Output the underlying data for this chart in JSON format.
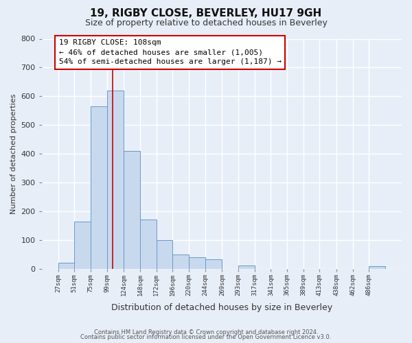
{
  "title1": "19, RIGBY CLOSE, BEVERLEY, HU17 9GH",
  "title2": "Size of property relative to detached houses in Beverley",
  "xlabel": "Distribution of detached houses by size in Beverley",
  "ylabel": "Number of detached properties",
  "bar_edges": [
    27,
    51,
    75,
    99,
    124,
    148,
    172,
    196,
    220,
    244,
    269,
    293,
    317,
    341,
    365,
    389,
    413,
    438,
    462,
    486,
    510
  ],
  "bar_heights": [
    20,
    165,
    565,
    620,
    410,
    170,
    100,
    50,
    40,
    33,
    0,
    12,
    0,
    0,
    0,
    0,
    0,
    0,
    0,
    8
  ],
  "bar_color": "#c8d9ee",
  "bar_edge_color": "#6699cc",
  "property_line_x": 108,
  "property_line_color": "#cc0000",
  "annotation_title": "19 RIGBY CLOSE: 108sqm",
  "annotation_line1": "← 46% of detached houses are smaller (1,005)",
  "annotation_line2": "54% of semi-detached houses are larger (1,187) →",
  "annotation_box_color": "#ffffff",
  "annotation_box_edge": "#cc0000",
  "ylim": [
    0,
    800
  ],
  "yticks": [
    0,
    100,
    200,
    300,
    400,
    500,
    600,
    700,
    800
  ],
  "footnote1": "Contains HM Land Registry data © Crown copyright and database right 2024.",
  "footnote2": "Contains public sector information licensed under the Open Government Licence v3.0.",
  "background_color": "#e8eef8",
  "grid_color": "#ffffff",
  "title1_fontsize": 11,
  "title2_fontsize": 9,
  "annot_fontsize": 8,
  "ylabel_fontsize": 8,
  "xlabel_fontsize": 9,
  "footnote_fontsize": 6
}
